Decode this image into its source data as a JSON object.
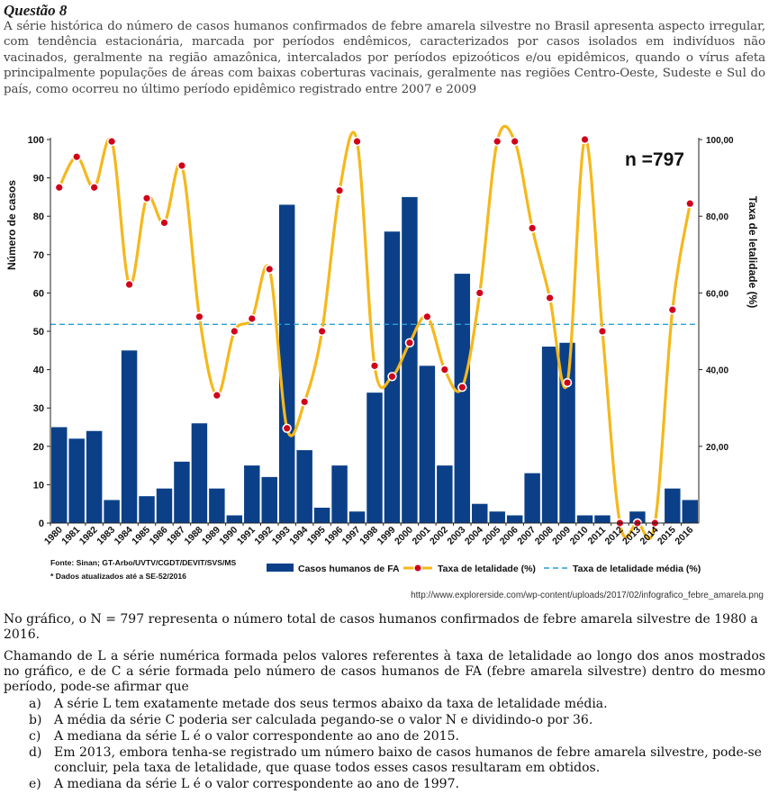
{
  "question": {
    "title": "Questão 8",
    "intro": "A série histórica do número de casos humanos confirmados de febre amarela silvestre no Brasil apresenta aspecto irregular, com tendência estacionária, marcada por períodos endêmicos, caracterizados por casos isolados em indivíduos não vacinados, geralmente na região amazônica, intercalados por períodos epizoóticos e/ou epidêmicos, quando o vírus afeta principalmente populações de áreas com baixas coberturas vacinais, geralmente nas regiões Centro-Oeste, Sudeste e Sul do país, como ocorreu no último período epidêmico registrado entre 2007 e 2009",
    "source_url": "http://www.explorerside.com/wp-content/uploads/2017/02/infografico_febre_amarela.png",
    "paragraph1": "No gráfico, o N = 797 representa o número total de casos humanos confirmados de febre amarela silvestre de 1980 a 2016.",
    "paragraph2": "Chamando de L a série numérica formada pelos valores referentes à taxa de letalidade ao longo dos anos mostrados no gráfico, e de C a série formada pelo número de casos humanos de FA (febre amarela silvestre) dentro do mesmo período, pode-se afirmar que",
    "options": [
      {
        "letter": "a)",
        "text": "A série L tem exatamente metade dos seus termos abaixo da taxa de letalidade média."
      },
      {
        "letter": "b)",
        "text": "A média da série C poderia ser calculada pegando-se o valor N e dividindo-o por 36."
      },
      {
        "letter": "c)",
        "text": "A mediana da série L é o valor correspondente ao ano de 2015."
      },
      {
        "letter": "d)",
        "text": "Em 2013, embora tenha-se registrado um número baixo de casos humanos de febre amarela silvestre, pode-se concluir, pela taxa de letalidade, que quase todos esses casos resultaram em obtidos."
      },
      {
        "letter": "e)",
        "text": "A mediana da série L é o valor correspondente ao ano de 1997."
      }
    ]
  },
  "chart_data": {
    "type": "bar",
    "annotation": "n =797",
    "ylabel_left": "Número de casos",
    "ylabel_right": "Taxa de letalidade (%)",
    "left_ticks": [
      "0",
      "10",
      "20",
      "30",
      "40",
      "50",
      "60",
      "70",
      "80",
      "90",
      "100"
    ],
    "right_ticks": [
      "20,00",
      "40,00",
      "60,00",
      "80,00",
      "100,00"
    ],
    "ylim_left": [
      0,
      100
    ],
    "ylim_right": [
      0,
      100
    ],
    "categories": [
      "1980",
      "1981",
      "1982",
      "1983",
      "1984",
      "1985",
      "1986",
      "1987",
      "1988",
      "1989",
      "1990",
      "1991",
      "1992",
      "1993",
      "1994",
      "1995",
      "1996",
      "1997",
      "1998",
      "1999",
      "2000",
      "2001",
      "2002",
      "2003",
      "2004",
      "2005",
      "2006",
      "2007",
      "2008",
      "2009",
      "2010",
      "2011",
      "2012",
      "2013",
      "2014",
      "2015",
      "2016"
    ],
    "series": [
      {
        "name": "Casos humanos de FA",
        "kind": "bar",
        "color": "#0b4088",
        "values": [
          25,
          22,
          24,
          6,
          45,
          7,
          9,
          16,
          26,
          9,
          2,
          15,
          12,
          83,
          19,
          4,
          15,
          3,
          34,
          76,
          85,
          41,
          15,
          65,
          5,
          3,
          2,
          13,
          46,
          47,
          2,
          2,
          0,
          3,
          0,
          9,
          6
        ]
      },
      {
        "name": "Taxa de letalidade (%)",
        "kind": "line",
        "color": "#f5b81c",
        "values": [
          87.5,
          95.5,
          87.5,
          99.5,
          62.2,
          84.7,
          78.3,
          93.2,
          53.8,
          33.3,
          50,
          53.3,
          66.2,
          24.7,
          31.6,
          50,
          86.7,
          99.5,
          41,
          38.2,
          47,
          53.8,
          40,
          35.4,
          60,
          99.5,
          99.5,
          76.9,
          58.7,
          36.6,
          100,
          50,
          0,
          0,
          0,
          55.6,
          83.3
        ]
      },
      {
        "name": "Taxa de letalidade média (%)",
        "kind": "hline",
        "color": "#2a9fd6",
        "value": 51.8
      }
    ],
    "source": "Fonte: Sinan; GT-Arbo/UVTV/CGDT/DEVIT/SVS/MS",
    "footnote": "* Dados atualizados até a SE-52/2016"
  }
}
